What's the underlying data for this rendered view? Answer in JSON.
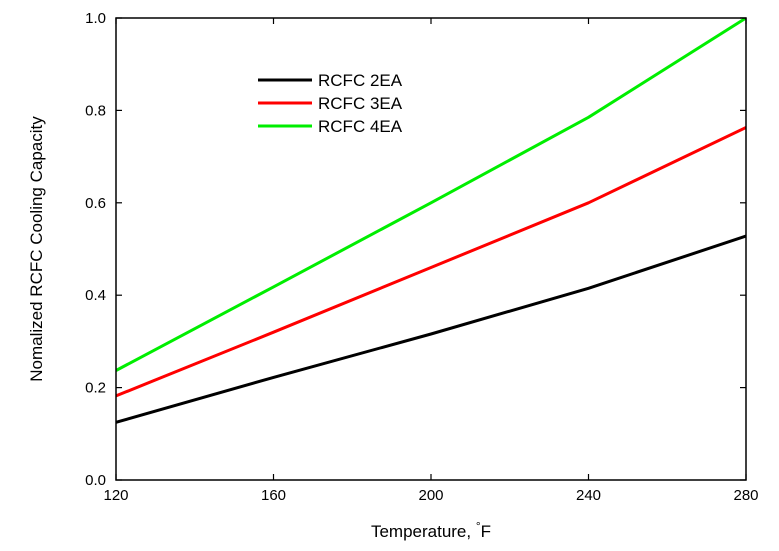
{
  "chart_data": {
    "type": "line",
    "title": "",
    "xlabel": "Temperature, °F",
    "ylabel": "Nomalized RCFC Cooling Capacity",
    "xlim": [
      120,
      280
    ],
    "ylim": [
      0.0,
      1.0
    ],
    "x_ticks": [
      "120",
      "160",
      "200",
      "240",
      "280"
    ],
    "y_ticks": [
      "0.0",
      "0.2",
      "0.4",
      "0.6",
      "0.8",
      "1.0"
    ],
    "grid": false,
    "legend_position": "top-left",
    "series": [
      {
        "name": "RCFC 2EA",
        "color": "#000000",
        "x": [
          120,
          160,
          200,
          240,
          280
        ],
        "y": [
          0.125,
          0.222,
          0.316,
          0.415,
          0.528
        ]
      },
      {
        "name": "RCFC 3EA",
        "color": "#ff0000",
        "x": [
          120,
          160,
          200,
          240,
          280
        ],
        "y": [
          0.182,
          0.32,
          0.46,
          0.6,
          0.763
        ]
      },
      {
        "name": "RCFC 4EA",
        "color": "#00ee00",
        "x": [
          120,
          160,
          200,
          240,
          280
        ],
        "y": [
          0.237,
          0.418,
          0.6,
          0.785,
          1.0
        ]
      }
    ]
  }
}
